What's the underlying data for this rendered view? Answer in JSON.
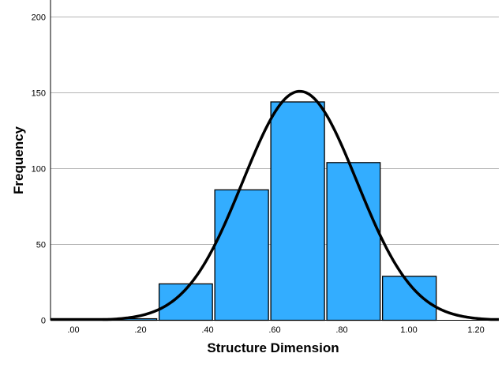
{
  "chart_data": {
    "type": "bar",
    "subtype": "histogram-with-normal-curve",
    "title": "",
    "xlabel": "Structure Dimension",
    "ylabel": "Frequency",
    "xlim": [
      -0.068,
      1.268
    ],
    "ylim": [
      0,
      210
    ],
    "x_ticks": [
      0,
      0.2,
      0.4,
      0.6,
      0.8,
      1.0,
      1.2
    ],
    "x_tick_labels": [
      ".00",
      ".20",
      ".40",
      ".60",
      ".80",
      "1.00",
      "1.20"
    ],
    "y_ticks": [
      0,
      50,
      100,
      150,
      200
    ],
    "y_tick_labels": [
      "0",
      "50",
      "100",
      "150",
      "200"
    ],
    "bins": [
      {
        "start": 0.085,
        "end": 0.252,
        "count": 1
      },
      {
        "start": 0.252,
        "end": 0.418,
        "count": 24
      },
      {
        "start": 0.418,
        "end": 0.585,
        "count": 86
      },
      {
        "start": 0.585,
        "end": 0.752,
        "count": 144
      },
      {
        "start": 0.752,
        "end": 0.918,
        "count": 104
      },
      {
        "start": 0.918,
        "end": 1.085,
        "count": 29
      }
    ],
    "normal_curve": {
      "mean": 0.675,
      "sd": 0.17,
      "peak": 151
    },
    "grid": "horizontal",
    "colors": {
      "bar": "#33adff",
      "bar_edge": "#000000",
      "curve": "#000000",
      "grid": "#b4b4b4"
    }
  }
}
